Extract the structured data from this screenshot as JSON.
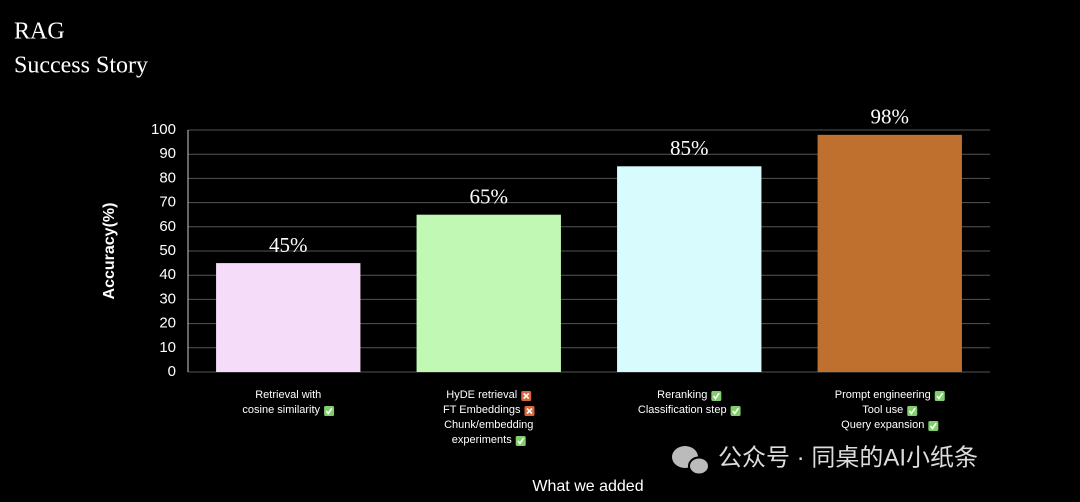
{
  "header": {
    "title": "RAG",
    "subtitle": "Success Story"
  },
  "chart_data": {
    "type": "bar",
    "categories": [
      null,
      null,
      null,
      null
    ],
    "category_items": [
      [
        {
          "lines": [
            "Retrieval with",
            "cosine similarity"
          ],
          "status": "check"
        }
      ],
      [
        {
          "lines": [
            "HyDE retrieval"
          ],
          "status": "cross"
        },
        {
          "lines": [
            "FT Embeddings"
          ],
          "status": "cross"
        },
        {
          "lines": [
            "Chunk/embedding",
            "experiments"
          ],
          "status": "check"
        }
      ],
      [
        {
          "lines": [
            "Reranking"
          ],
          "status": "check"
        },
        {
          "lines": [
            "Classification step"
          ],
          "status": "check"
        }
      ],
      [
        {
          "lines": [
            "Prompt engineering"
          ],
          "status": "check"
        },
        {
          "lines": [
            "Tool use"
          ],
          "status": "check"
        },
        {
          "lines": [
            "Query expansion"
          ],
          "status": "check"
        }
      ]
    ],
    "values": [
      45,
      65,
      85,
      98
    ],
    "value_labels": [
      "45%",
      "65%",
      "85%",
      "98%"
    ],
    "colors": [
      "#f5dcf8",
      "#c1f8b4",
      "#d8fbfd",
      "#c0702e"
    ],
    "ylim": [
      0,
      100
    ],
    "yticks": [
      0,
      10,
      20,
      30,
      40,
      50,
      60,
      70,
      80,
      90,
      100
    ],
    "grid": true,
    "y_label": "Accuracy(%)",
    "x_label": "What we added"
  },
  "watermark": "公众号 · 同桌的AI小纸条"
}
